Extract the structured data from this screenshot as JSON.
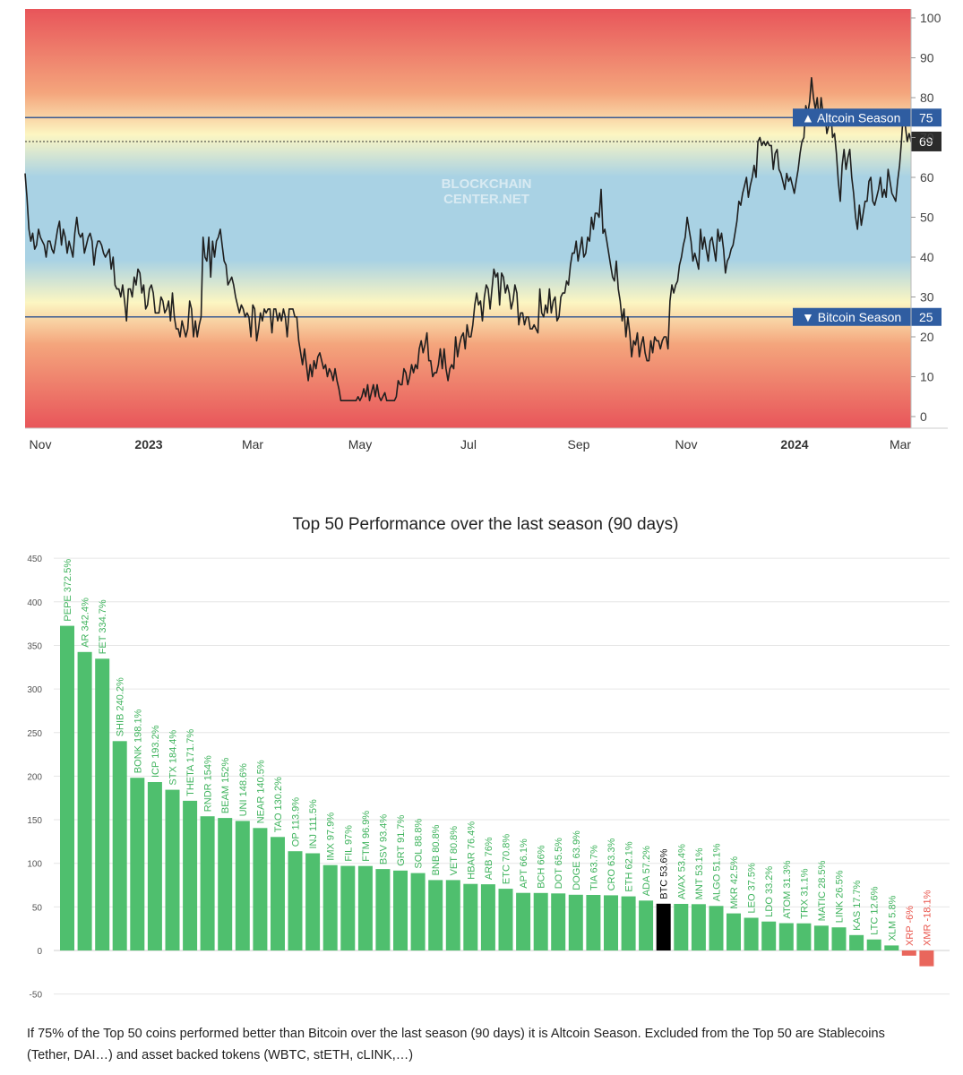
{
  "index_chart": {
    "type": "line",
    "watermark": [
      "BLOCKCHAIN",
      "CENTER.NET"
    ],
    "ylim": [
      0,
      100
    ],
    "y_ticks": [
      0,
      10,
      20,
      30,
      40,
      50,
      60,
      70,
      80,
      90,
      100
    ],
    "x_labels": [
      {
        "label": "Nov",
        "bold": false
      },
      {
        "label": "2023",
        "bold": true
      },
      {
        "label": "Mar",
        "bold": false
      },
      {
        "label": "May",
        "bold": false
      },
      {
        "label": "Jul",
        "bold": false
      },
      {
        "label": "Sep",
        "bold": false
      },
      {
        "label": "Nov",
        "bold": false
      },
      {
        "label": "2024",
        "bold": true
      },
      {
        "label": "Mar",
        "bold": false
      }
    ],
    "altcoin_line": {
      "label": "▲ Altcoin Season",
      "value": 75
    },
    "bitcoin_line": {
      "label": "▼ Bitcoin Season",
      "value": 25
    },
    "current": {
      "value": 69
    },
    "series": [
      61,
      55,
      47,
      44,
      46,
      42,
      43,
      47,
      45,
      44,
      43,
      40,
      44,
      44,
      42,
      41,
      44,
      47,
      49,
      43,
      47,
      45,
      41,
      44,
      42,
      40,
      46,
      50,
      46,
      45,
      46,
      41,
      43,
      45,
      46,
      44,
      38,
      42,
      44,
      44,
      43,
      41,
      40,
      41,
      42,
      37,
      40,
      33,
      32,
      32,
      30,
      33,
      29,
      24,
      32,
      32,
      30,
      35,
      33,
      37,
      36,
      31,
      33,
      27,
      28,
      32,
      33,
      31,
      26,
      26,
      26,
      30,
      29,
      26,
      27,
      29,
      24,
      31,
      25,
      22,
      22,
      20,
      24,
      22,
      20,
      22,
      29,
      27,
      20,
      24,
      20,
      23,
      25,
      45,
      40,
      39,
      45,
      35,
      44,
      40,
      44,
      45,
      47,
      43,
      39,
      38,
      33,
      34,
      35,
      33,
      30,
      28,
      26,
      28,
      27,
      25,
      26,
      25,
      20,
      28,
      27,
      19,
      22,
      26,
      24,
      27,
      26,
      27,
      27,
      21,
      27,
      27,
      24,
      26,
      24,
      27,
      25,
      20,
      27,
      27,
      27,
      25,
      25,
      19,
      16,
      13,
      17,
      13,
      9,
      13,
      10,
      14,
      12,
      15,
      16,
      14,
      12,
      13,
      10,
      12,
      11,
      9,
      12,
      9,
      7,
      4,
      4,
      4,
      4,
      4,
      4,
      4,
      4,
      4,
      5,
      4,
      5,
      7,
      5,
      8,
      4,
      6,
      8,
      5,
      8,
      5,
      4,
      5,
      6,
      4,
      4,
      4,
      4,
      4,
      5,
      9,
      8,
      8,
      12,
      11,
      8,
      10,
      13,
      11,
      13,
      12,
      17,
      19,
      16,
      18,
      21,
      14,
      14,
      10,
      11,
      11,
      13,
      17,
      12,
      17,
      12,
      9,
      12,
      13,
      12,
      20,
      15,
      18,
      20,
      21,
      17,
      23,
      20,
      20,
      23,
      28,
      31,
      28,
      29,
      24,
      30,
      33,
      32,
      27,
      32,
      37,
      35,
      36,
      28,
      36,
      35,
      31,
      33,
      31,
      27,
      29,
      33,
      31,
      23,
      26,
      26,
      23,
      25,
      25,
      22,
      22,
      23,
      22,
      21,
      32,
      26,
      25,
      28,
      26,
      32,
      26,
      29,
      30,
      24,
      25,
      30,
      31,
      31,
      34,
      33,
      38,
      41,
      41,
      44,
      39,
      42,
      45,
      40,
      41,
      45,
      44,
      50,
      47,
      51,
      51,
      50,
      57,
      46,
      47,
      44,
      41,
      38,
      35,
      34,
      39,
      32,
      29,
      24,
      27,
      20,
      25,
      21,
      15,
      19,
      18,
      21,
      15,
      18,
      20,
      16,
      14,
      14,
      19,
      16,
      20,
      19,
      19,
      17,
      19,
      20,
      20,
      17,
      29,
      33,
      31,
      33,
      34,
      38,
      40,
      43,
      45,
      50,
      47,
      44,
      39,
      41,
      39,
      37,
      47,
      42,
      45,
      42,
      39,
      44,
      45,
      42,
      39,
      47,
      44,
      46,
      42,
      36,
      39,
      40,
      42,
      43,
      46,
      49,
      54,
      53,
      56,
      58,
      60,
      55,
      58,
      60,
      63,
      60,
      69,
      70,
      68,
      69,
      68,
      69,
      68,
      68,
      62,
      66,
      67,
      62,
      61,
      59,
      57,
      61,
      59,
      60,
      58,
      56,
      59,
      62,
      66,
      69,
      70,
      78,
      76,
      79,
      85,
      80,
      77,
      80,
      74,
      80,
      76,
      76,
      71,
      73,
      77,
      70,
      71,
      66,
      59,
      54,
      63,
      67,
      62,
      65,
      67,
      60,
      56,
      50,
      47,
      53,
      48,
      51,
      54,
      54,
      59,
      60,
      54,
      53,
      55,
      57,
      60,
      55,
      57,
      55,
      62,
      59,
      56,
      55,
      54,
      59,
      63,
      69,
      77,
      73,
      69,
      71,
      69
    ]
  },
  "performance_chart": {
    "type": "bar",
    "title": "Top 50 Performance over the last season (90 days)",
    "ylim": [
      -50,
      450
    ],
    "y_ticks": [
      -50,
      0,
      50,
      100,
      150,
      200,
      250,
      300,
      350,
      400,
      450
    ],
    "bars": [
      {
        "coin": "PEPE",
        "value": 372.5,
        "label": "PEPE 372.5%"
      },
      {
        "coin": "AR",
        "value": 342.4,
        "label": "AR 342.4%"
      },
      {
        "coin": "FET",
        "value": 334.7,
        "label": "FET 334.7%"
      },
      {
        "coin": "SHIB",
        "value": 240.2,
        "label": "SHIB 240.2%"
      },
      {
        "coin": "BONK",
        "value": 198.1,
        "label": "BONK 198.1%"
      },
      {
        "coin": "ICP",
        "value": 193.2,
        "label": "ICP 193.2%"
      },
      {
        "coin": "STX",
        "value": 184.4,
        "label": "STX 184.4%"
      },
      {
        "coin": "THETA",
        "value": 171.7,
        "label": "THETA 171.7%"
      },
      {
        "coin": "RNDR",
        "value": 154,
        "label": "RNDR 154%"
      },
      {
        "coin": "BEAM",
        "value": 152,
        "label": "BEAM 152%"
      },
      {
        "coin": "UNI",
        "value": 148.6,
        "label": "UNI 148.6%"
      },
      {
        "coin": "NEAR",
        "value": 140.5,
        "label": "NEAR 140.5%"
      },
      {
        "coin": "TAO",
        "value": 130.2,
        "label": "TAO 130.2%"
      },
      {
        "coin": "OP",
        "value": 113.9,
        "label": "OP 113.9%"
      },
      {
        "coin": "INJ",
        "value": 111.5,
        "label": "INJ 111.5%"
      },
      {
        "coin": "IMX",
        "value": 97.9,
        "label": "IMX 97.9%"
      },
      {
        "coin": "FIL",
        "value": 97,
        "label": "FIL 97%"
      },
      {
        "coin": "FTM",
        "value": 96.9,
        "label": "FTM 96.9%"
      },
      {
        "coin": "BSV",
        "value": 93.4,
        "label": "BSV 93.4%"
      },
      {
        "coin": "GRT",
        "value": 91.7,
        "label": "GRT 91.7%"
      },
      {
        "coin": "SOL",
        "value": 88.8,
        "label": "SOL 88.8%"
      },
      {
        "coin": "BNB",
        "value": 80.8,
        "label": "BNB 80.8%"
      },
      {
        "coin": "VET",
        "value": 80.8,
        "label": "VET 80.8%"
      },
      {
        "coin": "HBAR",
        "value": 76.4,
        "label": "HBAR 76.4%"
      },
      {
        "coin": "ARB",
        "value": 76,
        "label": "ARB 76%"
      },
      {
        "coin": "ETC",
        "value": 70.8,
        "label": "ETC 70.8%"
      },
      {
        "coin": "APT",
        "value": 66.1,
        "label": "APT 66.1%"
      },
      {
        "coin": "BCH",
        "value": 66,
        "label": "BCH 66%"
      },
      {
        "coin": "DOT",
        "value": 65.5,
        "label": "DOT 65.5%"
      },
      {
        "coin": "DOGE",
        "value": 63.9,
        "label": "DOGE 63.9%"
      },
      {
        "coin": "TIA",
        "value": 63.7,
        "label": "TIA 63.7%"
      },
      {
        "coin": "CRO",
        "value": 63.3,
        "label": "CRO 63.3%"
      },
      {
        "coin": "ETH",
        "value": 62.1,
        "label": "ETH 62.1%"
      },
      {
        "coin": "ADA",
        "value": 57.2,
        "label": "ADA 57.2%"
      },
      {
        "coin": "BTC",
        "value": 53.6,
        "label": "BTC 53.6%"
      },
      {
        "coin": "AVAX",
        "value": 53.4,
        "label": "AVAX 53.4%"
      },
      {
        "coin": "MNT",
        "value": 53.1,
        "label": "MNT 53.1%"
      },
      {
        "coin": "ALGO",
        "value": 51.1,
        "label": "ALGO 51.1%"
      },
      {
        "coin": "MKR",
        "value": 42.5,
        "label": "MKR 42.5%"
      },
      {
        "coin": "LEO",
        "value": 37.5,
        "label": "LEO 37.5%"
      },
      {
        "coin": "LDO",
        "value": 33.2,
        "label": "LDO 33.2%"
      },
      {
        "coin": "ATOM",
        "value": 31.3,
        "label": "ATOM 31.3%"
      },
      {
        "coin": "TRX",
        "value": 31.1,
        "label": "TRX 31.1%"
      },
      {
        "coin": "MATIC",
        "value": 28.5,
        "label": "MATIC 28.5%"
      },
      {
        "coin": "LINK",
        "value": 26.5,
        "label": "LINK 26.5%"
      },
      {
        "coin": "KAS",
        "value": 17.7,
        "label": "KAS 17.7%"
      },
      {
        "coin": "LTC",
        "value": 12.6,
        "label": "LTC 12.6%"
      },
      {
        "coin": "XLM",
        "value": 5.8,
        "label": "XLM 5.8%"
      },
      {
        "coin": "XRP",
        "value": -6,
        "label": "XRP -6%"
      },
      {
        "coin": "XMR",
        "value": -18.1,
        "label": "XMR -18.1%"
      }
    ]
  },
  "footnote": "If 75% of the Top 50 coins performed better than Bitcoin over the last season (90 days) it is Altcoin Season. Excluded from the Top 50 are Stablecoins (Tether, DAI…) and asset backed tokens (WBTC, stETH, cLINK,…)",
  "colors": {
    "background": "#ffffff",
    "line": "#1f1f1f",
    "season_line": "#3a5a92",
    "season_badge": "#2f5da1",
    "current_badge": "#2b2b2b",
    "grad_red": "#e8555a",
    "grad_orange": "#f4a57c",
    "grad_yellow": "#fcf6c2",
    "grad_blue": "#a9d2e4",
    "bar_green": "#4fbf6e",
    "bar_btc": "#000000",
    "bar_red": "#e9665c",
    "label_green": "#3fb35d",
    "label_red": "#e9544b",
    "grid": "#e6e6e6"
  }
}
